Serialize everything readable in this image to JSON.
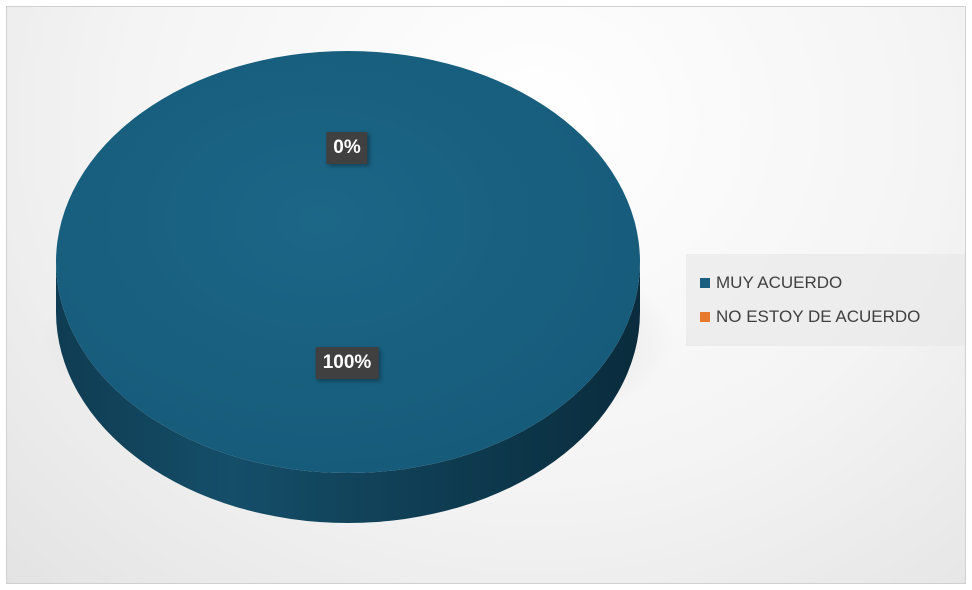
{
  "chart_data": {
    "type": "pie",
    "style": "3d",
    "categories": [
      "MUY ACUERDO",
      "NO ESTOY DE ACUERDO"
    ],
    "values": [
      100,
      0
    ],
    "data_labels": [
      "100%",
      "0%"
    ],
    "colors": [
      "#1a5f80",
      "#e87a2e"
    ],
    "legend": {
      "position": "right",
      "items": [
        {
          "label": "MUY ACUERDO",
          "color": "#1a5f80"
        },
        {
          "label": "NO ESTOY DE ACUERDO",
          "color": "#e87a2e"
        }
      ]
    }
  }
}
